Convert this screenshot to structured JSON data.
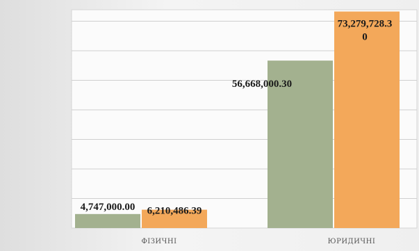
{
  "chart_data": {
    "type": "bar",
    "categories": [
      "ФІЗИЧНІ",
      "ЮРИДИЧНІ"
    ],
    "series": [
      {
        "values": [
          4747000.0,
          56668000.3
        ],
        "labels": [
          "4,747,000.00",
          "56,668,000.30"
        ],
        "color": "#a3b18f"
      },
      {
        "values": [
          6210486.39,
          73279728.3
        ],
        "labels": [
          "6,210,486.39",
          "73,279,728.3 0"
        ],
        "color": "#f3a85a"
      }
    ],
    "ylim": [
      0,
      80000000
    ],
    "grid": true,
    "legend": "none",
    "plot_background": "#fbfbfb",
    "grid_color": "#cfcfcf"
  }
}
